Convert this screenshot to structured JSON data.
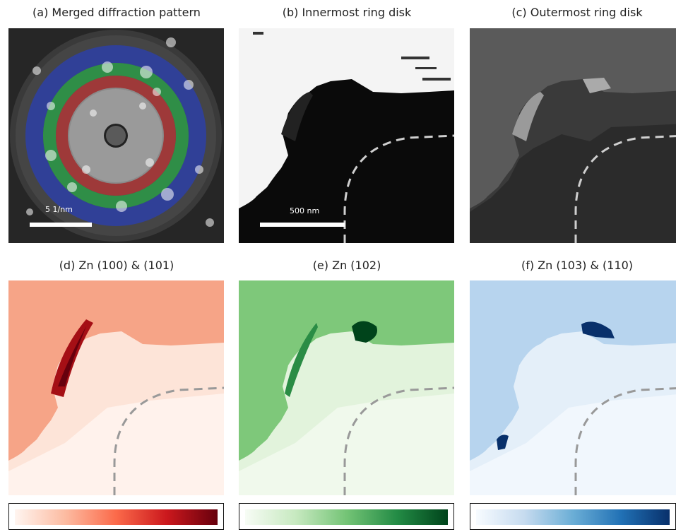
{
  "panels": {
    "a": {
      "title": "(a) Merged diffraction pattern",
      "scalebar": "5 1/nm"
    },
    "b": {
      "title": "(b) Innermost ring disk",
      "scalebar": "500 nm"
    },
    "c": {
      "title": "(c) Outermost ring disk"
    },
    "d": {
      "title": "(d) Zn (100) & (101)",
      "cmap": "Reds"
    },
    "e": {
      "title": "(e) Zn (102)",
      "cmap": "Greens"
    },
    "f": {
      "title": "(f) Zn (103) & (110)",
      "cmap": "Blues"
    }
  },
  "colors": {
    "ring_inner": "#c0392b",
    "ring_middle": "#27ae60",
    "ring_outer": "#2c3e9f",
    "reds_light": "#fdeee6",
    "reds_mid": "#f6a487",
    "reds_dark": "#67000d",
    "greens_light": "#eef8ea",
    "greens_mid": "#7ec87a",
    "greens_dark": "#00441b",
    "blues_light": "#eef5fd",
    "blues_mid": "#b7d4ee",
    "blues_dark": "#08306b"
  }
}
